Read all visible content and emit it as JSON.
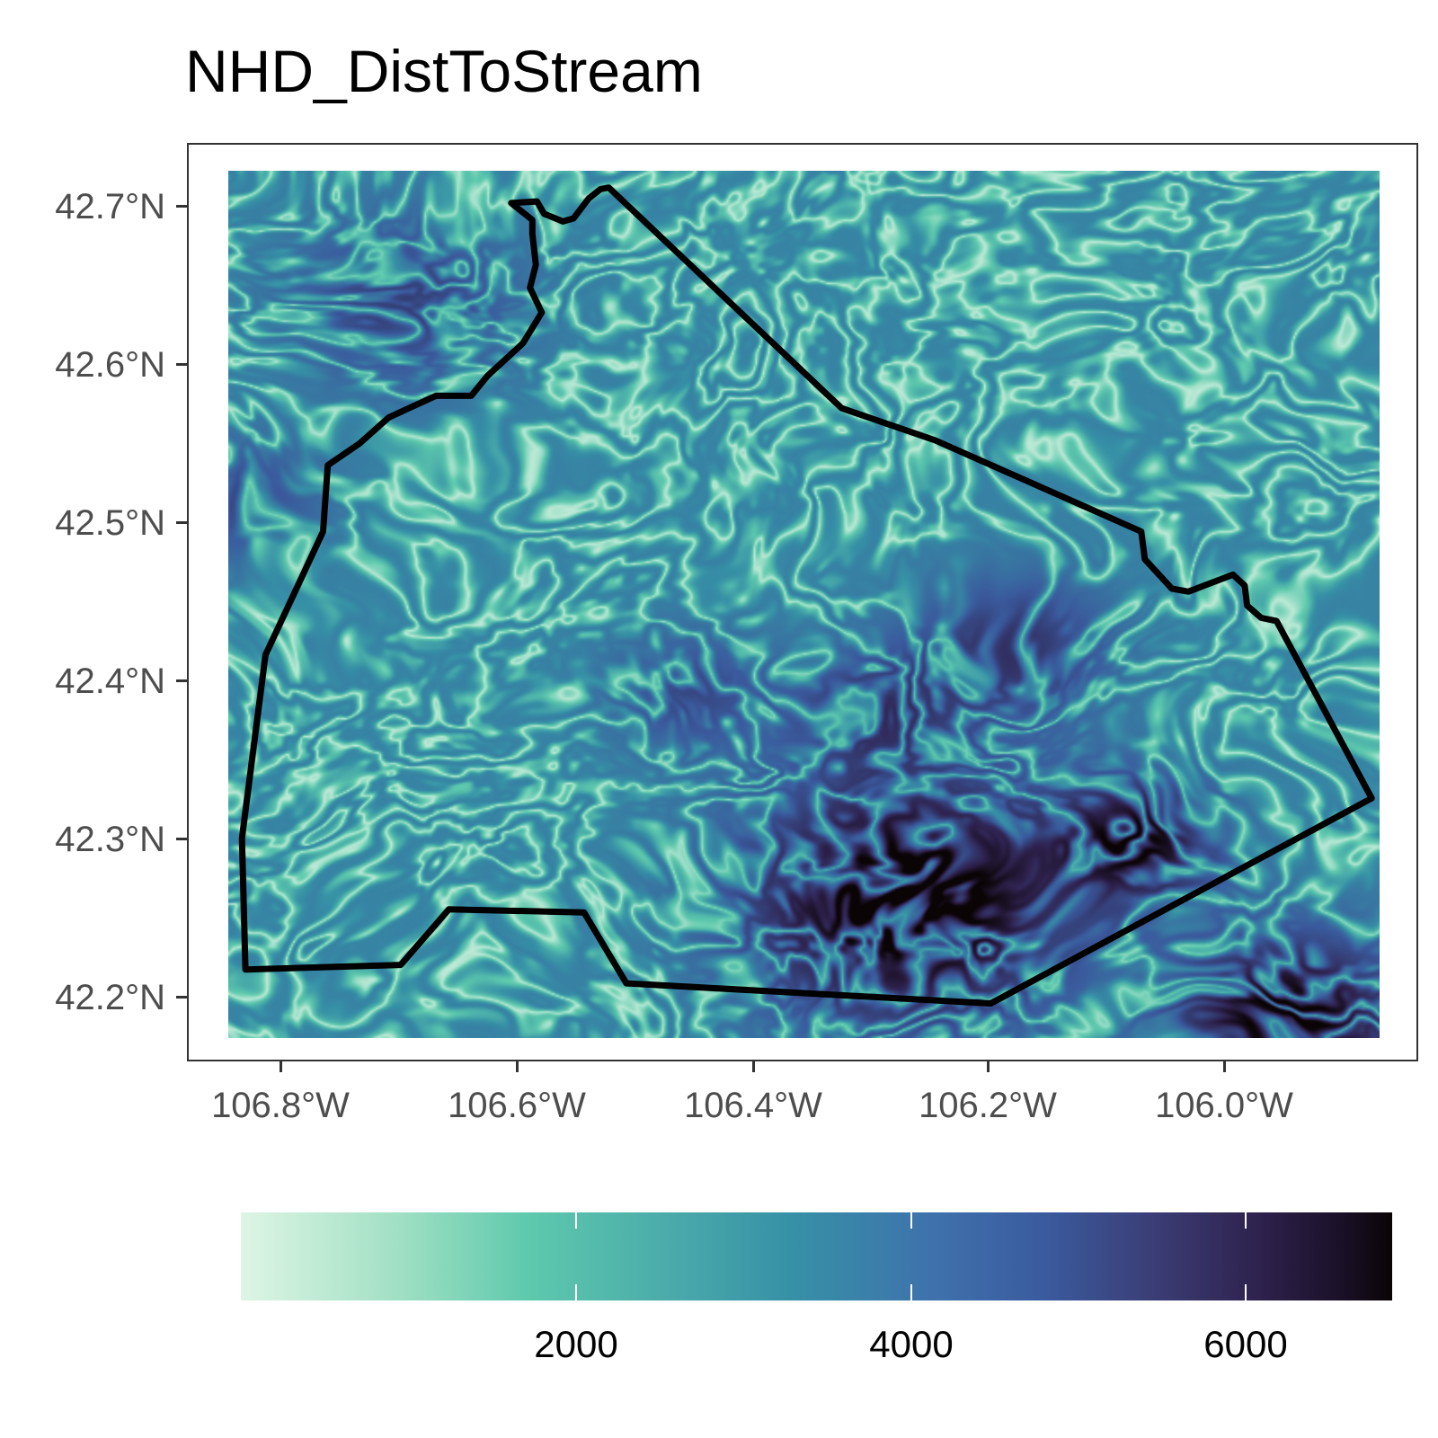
{
  "title": "NHD_DistToStream",
  "axes": {
    "y_ticks": [
      "42.7°N",
      "42.6°N",
      "42.5°N",
      "42.4°N",
      "42.3°N",
      "42.2°N"
    ],
    "x_ticks": [
      "106.8°W",
      "106.6°W",
      "106.4°W",
      "106.2°W",
      "106.0°W"
    ]
  },
  "legend": {
    "labels": [
      "2000",
      "4000",
      "6000"
    ],
    "colors": [
      "#def5e5",
      "#5ec9ad",
      "#3690a6",
      "#3a5a9d",
      "#2f2350",
      "#0b0405"
    ]
  },
  "boundary": {
    "color": "#000000",
    "vertices": [
      [
        -106.523,
        42.713
      ],
      [
        -106.325,
        42.57
      ],
      [
        -106.245,
        42.549
      ],
      [
        -106.07,
        42.49
      ],
      [
        -106.067,
        42.472
      ],
      [
        -106.044,
        42.453
      ],
      [
        -106.03,
        42.451
      ],
      [
        -105.992,
        42.462
      ],
      [
        -105.982,
        42.455
      ],
      [
        -105.98,
        42.442
      ],
      [
        -105.968,
        42.434
      ],
      [
        -105.955,
        42.432
      ],
      [
        -105.874,
        42.317
      ],
      [
        -106.198,
        42.184
      ],
      [
        -106.508,
        42.197
      ],
      [
        -106.544,
        42.243
      ],
      [
        -106.659,
        42.245
      ],
      [
        -106.7,
        42.209
      ],
      [
        -106.832,
        42.206
      ],
      [
        -106.835,
        42.291
      ],
      [
        -106.815,
        42.41
      ],
      [
        -106.766,
        42.49
      ],
      [
        -106.762,
        42.533
      ],
      [
        -106.735,
        42.547
      ],
      [
        -106.71,
        42.564
      ],
      [
        -106.67,
        42.578
      ],
      [
        -106.64,
        42.578
      ],
      [
        -106.626,
        42.591
      ],
      [
        -106.596,
        42.612
      ],
      [
        -106.58,
        42.632
      ],
      [
        -106.59,
        42.648
      ],
      [
        -106.585,
        42.663
      ],
      [
        -106.588,
        42.683
      ],
      [
        -106.588,
        42.692
      ],
      [
        -106.606,
        42.703
      ],
      [
        -106.584,
        42.704
      ],
      [
        -106.578,
        42.696
      ],
      [
        -106.562,
        42.691
      ],
      [
        -106.553,
        42.693
      ],
      [
        -106.54,
        42.706
      ],
      [
        -106.53,
        42.712
      ],
      [
        -106.523,
        42.713
      ]
    ]
  }
}
